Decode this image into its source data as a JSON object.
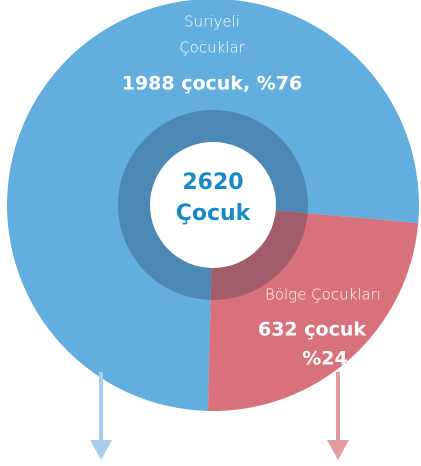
{
  "chart_data": {
    "type": "pie",
    "categories": [
      [
        "Suriyeli",
        "Çocuklar"
      ],
      [
        "Bölge Çocukları"
      ]
    ],
    "values": [
      76,
      24
    ],
    "value_labels": [
      [
        "1988 çocuk, %76"
      ],
      [
        "632 çocuk",
        "%24"
      ]
    ],
    "colors": [
      "#62aedf",
      "#d9717c"
    ],
    "center_label": [
      "2620",
      "Çocuk"
    ]
  }
}
